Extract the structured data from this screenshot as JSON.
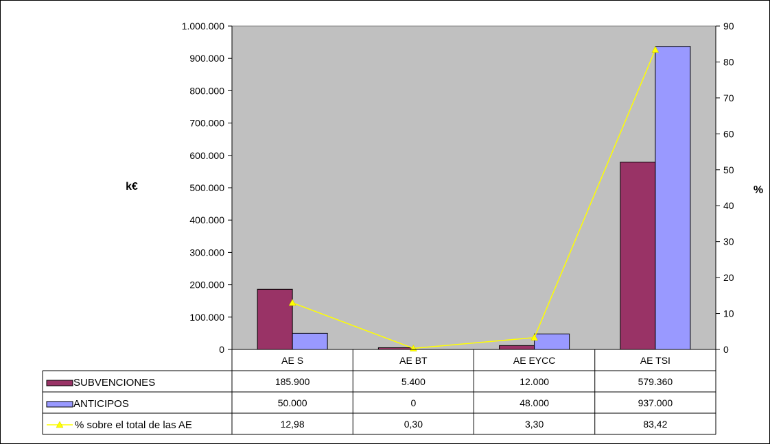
{
  "chart_data": {
    "type": "bar",
    "categories": [
      "AE S",
      "AE BT",
      "AE EYCC",
      "AE TSI"
    ],
    "series": [
      {
        "name": "SUBVENCIONES",
        "kind": "bar",
        "axis": "left",
        "color": "#993366",
        "values": [
          185900,
          5400,
          12000,
          579360
        ],
        "labels": [
          "185.900",
          "5.400",
          "12.000",
          "579.360"
        ]
      },
      {
        "name": "ANTICIPOS",
        "kind": "bar",
        "axis": "left",
        "color": "#9999ff",
        "values": [
          50000,
          0,
          48000,
          937000
        ],
        "labels": [
          "50.000",
          "0",
          "48.000",
          "937.000"
        ]
      },
      {
        "name": "% sobre el total de las AE",
        "kind": "line",
        "axis": "right",
        "color": "#ffff00",
        "marker": "triangle",
        "values": [
          12.98,
          0.3,
          3.3,
          83.42
        ],
        "labels": [
          "12,98",
          "0,30",
          "3,30",
          "83,42"
        ]
      }
    ],
    "ylabel": "k€",
    "y2label": "%",
    "ylim": [
      0,
      1000000
    ],
    "y2lim": [
      0,
      90
    ],
    "yticks": [
      "0",
      "100.000",
      "200.000",
      "300.000",
      "400.000",
      "500.000",
      "600.000",
      "700.000",
      "800.000",
      "900.000",
      "1.000.000"
    ],
    "y2ticks": [
      "0",
      "10",
      "20",
      "30",
      "40",
      "50",
      "60",
      "70",
      "80",
      "90"
    ],
    "plot_background": "#c0c0c0",
    "grid": false,
    "legend": "data-table"
  }
}
